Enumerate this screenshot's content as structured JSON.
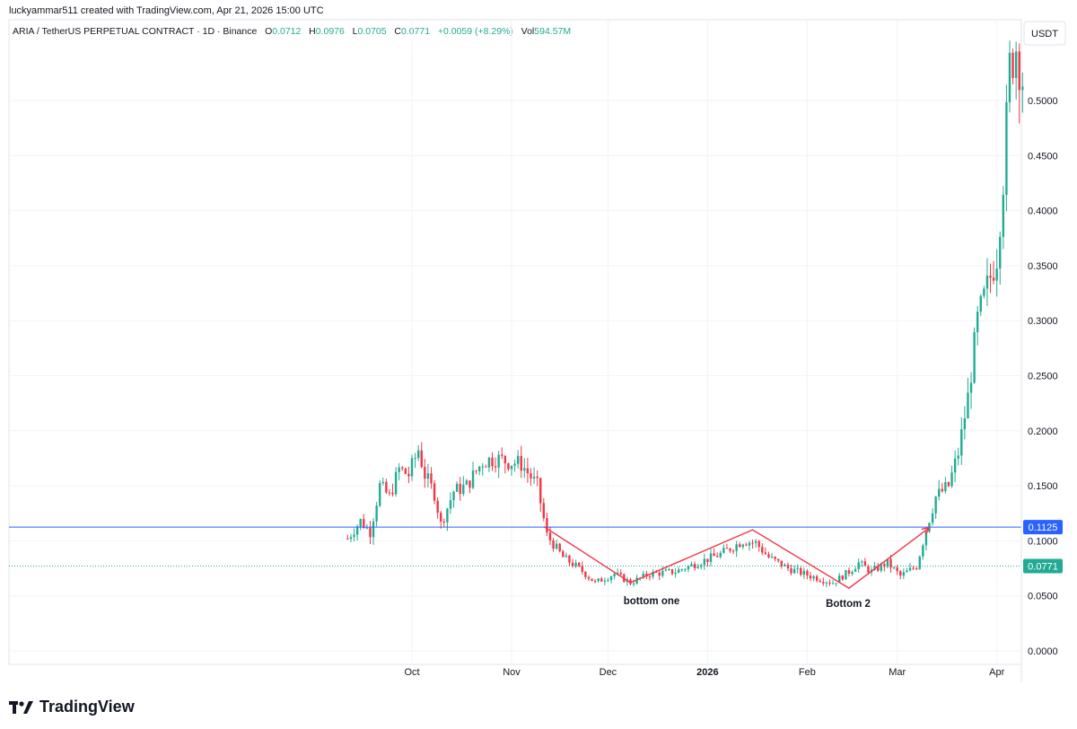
{
  "header": {
    "credit": "luckyammar511 created with TradingView.com, Apr 21, 2026 15:00 UTC",
    "symbol": "ARIA / TetherUS PERPETUAL CONTRACT · 1D · Binance",
    "o_label": "O",
    "o_value": "0.0712",
    "h_label": "H",
    "h_value": "0.0976",
    "l_label": "L",
    "l_value": "0.0705",
    "c_label": "C",
    "c_value": "0.0771",
    "change": "+0.0059 (+8.29%)",
    "vol_label": "Vol",
    "vol_value": "594.57M"
  },
  "footer": {
    "brand": "TradingView"
  },
  "colors": {
    "up": "#22ab94",
    "down": "#f23645",
    "blue_line": "#2962ff",
    "current_line": "#22ab94",
    "annotation": "#f23645",
    "grid": "#f0f3fa"
  },
  "chart_data": {
    "type": "candlestick",
    "currency": "USDT",
    "y_ticks": [
      "0.5000",
      "0.4500",
      "0.4000",
      "0.3500",
      "0.3000",
      "0.2500",
      "0.2000",
      "0.1500",
      "0.1000",
      "0.0500",
      "0.0000"
    ],
    "ylim": [
      0,
      0.57
    ],
    "x_ticks": [
      "Oct",
      "Nov",
      "Dec",
      "2026",
      "Feb",
      "Mar",
      "Apr"
    ],
    "price_lines": [
      {
        "label": "0.1125",
        "value": 0.1125,
        "style": "solid",
        "color": "#2962ff"
      },
      {
        "label": "0.0771",
        "value": 0.0771,
        "style": "dotted",
        "color": "#22ab94"
      }
    ],
    "annotations": [
      {
        "text": "bottom one"
      },
      {
        "text": "Bottom 2"
      }
    ],
    "zigzag": [
      {
        "date": "2025-11-11",
        "value": 0.113
      },
      {
        "date": "2025-12-08",
        "value": 0.062
      },
      {
        "date": "2026-01-15",
        "value": 0.11
      },
      {
        "date": "2026-02-14",
        "value": 0.057
      },
      {
        "date": "2026-03-11",
        "value": 0.112
      }
    ],
    "grid": true,
    "series_up_color": "#22ab94",
    "series_down_color": "#f23645",
    "closes": [
      {
        "date": "2025-09-11",
        "value": 0.102
      },
      {
        "date": "2025-09-15",
        "value": 0.118
      },
      {
        "date": "2025-09-18",
        "value": 0.108
      },
      {
        "date": "2025-09-21",
        "value": 0.15
      },
      {
        "date": "2025-09-24",
        "value": 0.14
      },
      {
        "date": "2025-09-27",
        "value": 0.165
      },
      {
        "date": "2025-09-30",
        "value": 0.16
      },
      {
        "date": "2025-10-03",
        "value": 0.183
      },
      {
        "date": "2025-10-05",
        "value": 0.16
      },
      {
        "date": "2025-10-08",
        "value": 0.143
      },
      {
        "date": "2025-10-10",
        "value": 0.115
      },
      {
        "date": "2025-10-14",
        "value": 0.145
      },
      {
        "date": "2025-10-18",
        "value": 0.15
      },
      {
        "date": "2025-10-23",
        "value": 0.172
      },
      {
        "date": "2025-10-27",
        "value": 0.175
      },
      {
        "date": "2025-10-31",
        "value": 0.172
      },
      {
        "date": "2025-11-04",
        "value": 0.17
      },
      {
        "date": "2025-11-09",
        "value": 0.15
      },
      {
        "date": "2025-11-12",
        "value": 0.105
      },
      {
        "date": "2025-11-17",
        "value": 0.085
      },
      {
        "date": "2025-11-22",
        "value": 0.075
      },
      {
        "date": "2025-11-27",
        "value": 0.062
      },
      {
        "date": "2025-12-03",
        "value": 0.07
      },
      {
        "date": "2025-12-08",
        "value": 0.062
      },
      {
        "date": "2025-12-14",
        "value": 0.07
      },
      {
        "date": "2025-12-22",
        "value": 0.072
      },
      {
        "date": "2025-12-29",
        "value": 0.08
      },
      {
        "date": "2026-01-05",
        "value": 0.088
      },
      {
        "date": "2026-01-12",
        "value": 0.1
      },
      {
        "date": "2026-01-16",
        "value": 0.098
      },
      {
        "date": "2026-01-20",
        "value": 0.085
      },
      {
        "date": "2026-01-26",
        "value": 0.075
      },
      {
        "date": "2026-02-02",
        "value": 0.068
      },
      {
        "date": "2026-02-09",
        "value": 0.062
      },
      {
        "date": "2026-02-14",
        "value": 0.072
      },
      {
        "date": "2026-02-17",
        "value": 0.08
      },
      {
        "date": "2026-02-21",
        "value": 0.072
      },
      {
        "date": "2026-02-26",
        "value": 0.08
      },
      {
        "date": "2026-03-02",
        "value": 0.068
      },
      {
        "date": "2026-03-07",
        "value": 0.077
      },
      {
        "date": "2026-03-10",
        "value": 0.11
      },
      {
        "date": "2026-03-13",
        "value": 0.14
      },
      {
        "date": "2026-03-17",
        "value": 0.15
      },
      {
        "date": "2026-03-20",
        "value": 0.18
      },
      {
        "date": "2026-03-23",
        "value": 0.23
      },
      {
        "date": "2026-03-26",
        "value": 0.3
      },
      {
        "date": "2026-03-29",
        "value": 0.33
      },
      {
        "date": "2026-04-01",
        "value": 0.36
      },
      {
        "date": "2026-04-03",
        "value": 0.43
      },
      {
        "date": "2026-04-05",
        "value": 0.53
      },
      {
        "date": "2026-04-07",
        "value": 0.55
      },
      {
        "date": "2026-04-09",
        "value": 0.52
      },
      {
        "date": "2026-04-10",
        "value": 0.51
      }
    ]
  }
}
